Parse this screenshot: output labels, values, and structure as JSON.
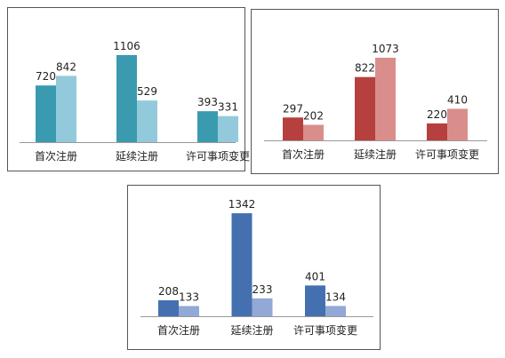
{
  "chart_data": [
    {
      "type": "bar",
      "categories": [
        "首次注册",
        "延续注册",
        "许可事项变更"
      ],
      "series": [
        {
          "color": "#3a9bb0",
          "values": [
            720,
            1106,
            393
          ]
        },
        {
          "color": "#93cadb",
          "values": [
            842,
            529,
            331
          ]
        }
      ]
    },
    {
      "type": "bar",
      "categories": [
        "首次注册",
        "延续注册",
        "许可事项变更"
      ],
      "series": [
        {
          "color": "#b5403e",
          "values": [
            297,
            822,
            220
          ]
        },
        {
          "color": "#d98e8c",
          "values": [
            202,
            1073,
            410
          ]
        }
      ]
    },
    {
      "type": "bar",
      "categories": [
        "首次注册",
        "延续注册",
        "许可事项变更"
      ],
      "series": [
        {
          "color": "#4470b0",
          "values": [
            208,
            1342,
            401
          ]
        },
        {
          "color": "#92a8d6",
          "values": [
            133,
            233,
            134
          ]
        }
      ]
    }
  ]
}
